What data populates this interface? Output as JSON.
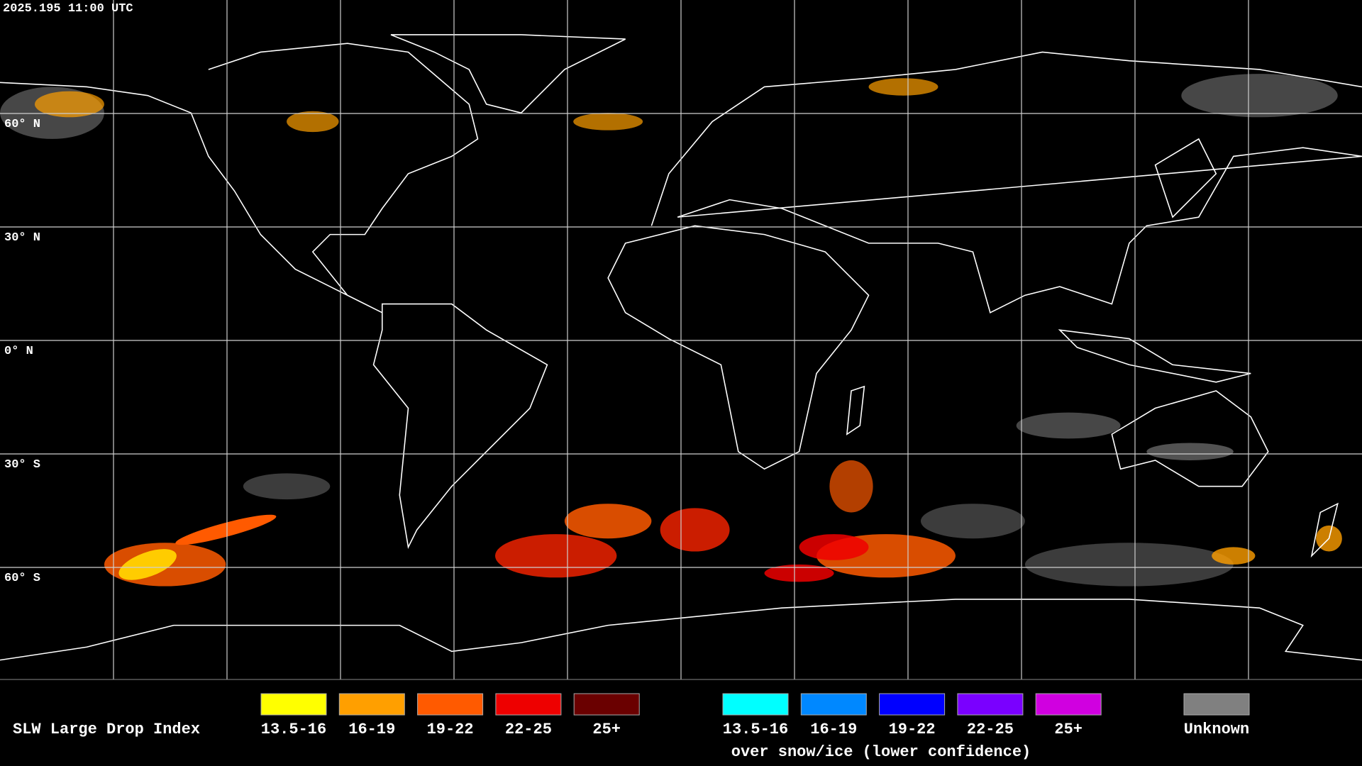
{
  "timestamp": "2025.195 11:00 UTC",
  "lat_labels": [
    "60° N",
    "30° N",
    "0° N",
    "30° S",
    "60° S"
  ],
  "legend": {
    "title": "SLW Large Drop Index",
    "water": [
      {
        "label": "13.5-16",
        "color": "#ffff00"
      },
      {
        "label": "16-19",
        "color": "#ff9f00"
      },
      {
        "label": "19-22",
        "color": "#ff5a00"
      },
      {
        "label": "22-25",
        "color": "#ee0000"
      },
      {
        "label": "25+",
        "color": "#6a0000"
      }
    ],
    "ice": [
      {
        "label": "13.5-16",
        "color": "#00ffff"
      },
      {
        "label": "16-19",
        "color": "#0088ff"
      },
      {
        "label": "19-22",
        "color": "#0000ff"
      },
      {
        "label": "22-25",
        "color": "#7a00ff"
      },
      {
        "label": "25+",
        "color": "#d000e0"
      }
    ],
    "ice_caption": "over snow/ice (lower confidence)",
    "unknown": {
      "label": "Unknown",
      "color": "#808080"
    }
  }
}
